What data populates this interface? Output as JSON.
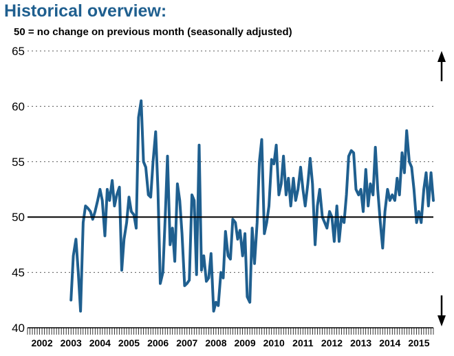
{
  "header": {
    "title": "Historical overview:",
    "subtitle": "50 = no change on previous month (seasonally adjusted)"
  },
  "colors": {
    "title": "#1f5f8f",
    "series": "#1f5f8f",
    "reference_line": "#000000",
    "grid": "#555555"
  },
  "chart_data": {
    "type": "line",
    "xlim": [
      2002,
      2016
    ],
    "ylim": [
      40,
      65
    ],
    "y_ticks": [
      40,
      45,
      50,
      55,
      60,
      65
    ],
    "x_tick_labels": [
      "2002",
      "2003",
      "2004",
      "2005",
      "2006",
      "2007",
      "2008",
      "2009",
      "2010",
      "2011",
      "2012",
      "2013",
      "2014",
      "2015"
    ],
    "reference_line": 50,
    "grid": "dotted horizontal",
    "markers": [
      "up-arrow top-right",
      "down-arrow bottom-right"
    ],
    "series": [
      {
        "points": [
          [
            2003.5,
            42.5
          ],
          [
            2003.58,
            46.5
          ],
          [
            2003.67,
            48.0
          ],
          [
            2003.75,
            45.0
          ],
          [
            2003.83,
            41.5
          ],
          [
            2003.92,
            49.5
          ],
          [
            2004.0,
            51.0
          ],
          [
            2004.08,
            50.8
          ],
          [
            2004.17,
            50.5
          ],
          [
            2004.25,
            49.8
          ],
          [
            2004.33,
            50.5
          ],
          [
            2004.42,
            51.5
          ],
          [
            2004.5,
            52.5
          ],
          [
            2004.58,
            51.5
          ],
          [
            2004.67,
            48.3
          ],
          [
            2004.75,
            52.5
          ],
          [
            2004.83,
            51.5
          ],
          [
            2004.92,
            53.3
          ],
          [
            2005.0,
            51.0
          ],
          [
            2005.08,
            52.0
          ],
          [
            2005.17,
            52.7
          ],
          [
            2005.25,
            45.2
          ],
          [
            2005.33,
            48.0
          ],
          [
            2005.42,
            49.5
          ],
          [
            2005.5,
            51.8
          ],
          [
            2005.58,
            50.5
          ],
          [
            2005.67,
            50.2
          ],
          [
            2005.75,
            49.0
          ],
          [
            2005.83,
            59.0
          ],
          [
            2005.92,
            60.5
          ],
          [
            2006.0,
            55.0
          ],
          [
            2006.08,
            54.5
          ],
          [
            2006.17,
            52.0
          ],
          [
            2006.25,
            51.8
          ],
          [
            2006.33,
            55.0
          ],
          [
            2006.42,
            57.7
          ],
          [
            2006.5,
            52.5
          ],
          [
            2006.58,
            44.0
          ],
          [
            2006.67,
            45.0
          ],
          [
            2006.75,
            50.0
          ],
          [
            2006.83,
            55.5
          ],
          [
            2006.92,
            47.5
          ],
          [
            2007.0,
            49.0
          ],
          [
            2007.08,
            46.0
          ],
          [
            2007.17,
            53.0
          ],
          [
            2007.25,
            51.5
          ],
          [
            2007.33,
            48.5
          ],
          [
            2007.42,
            43.8
          ],
          [
            2007.5,
            44.0
          ],
          [
            2007.58,
            44.3
          ],
          [
            2007.67,
            52.0
          ],
          [
            2007.75,
            51.5
          ],
          [
            2007.83,
            44.8
          ],
          [
            2007.92,
            56.5
          ],
          [
            2008.0,
            45.2
          ],
          [
            2008.08,
            46.5
          ],
          [
            2008.17,
            44.2
          ],
          [
            2008.25,
            44.5
          ],
          [
            2008.33,
            46.7
          ],
          [
            2008.42,
            41.5
          ],
          [
            2008.5,
            42.3
          ],
          [
            2008.58,
            42.0
          ],
          [
            2008.67,
            45.0
          ],
          [
            2008.75,
            44.5
          ],
          [
            2008.83,
            48.7
          ],
          [
            2008.92,
            46.5
          ],
          [
            2009.0,
            46.2
          ],
          [
            2009.08,
            49.8
          ],
          [
            2009.17,
            49.5
          ],
          [
            2009.25,
            48.0
          ],
          [
            2009.33,
            48.8
          ],
          [
            2009.42,
            46.5
          ],
          [
            2009.5,
            48.5
          ],
          [
            2009.58,
            42.8
          ],
          [
            2009.67,
            42.3
          ],
          [
            2009.75,
            49.0
          ],
          [
            2009.83,
            45.8
          ],
          [
            2009.92,
            49.5
          ],
          [
            2010.0,
            55.0
          ],
          [
            2010.08,
            57.0
          ],
          [
            2010.17,
            48.5
          ],
          [
            2010.25,
            49.5
          ],
          [
            2010.33,
            51.0
          ],
          [
            2010.42,
            55.2
          ],
          [
            2010.5,
            54.8
          ],
          [
            2010.58,
            56.5
          ],
          [
            2010.67,
            52.0
          ],
          [
            2010.75,
            53.0
          ],
          [
            2010.83,
            55.5
          ],
          [
            2010.92,
            52.0
          ],
          [
            2011.0,
            53.5
          ],
          [
            2011.08,
            51.0
          ],
          [
            2011.17,
            53.5
          ],
          [
            2011.25,
            51.5
          ],
          [
            2011.33,
            52.5
          ],
          [
            2011.42,
            54.5
          ],
          [
            2011.5,
            52.5
          ],
          [
            2011.58,
            51.0
          ],
          [
            2011.67,
            53.0
          ],
          [
            2011.75,
            55.3
          ],
          [
            2011.83,
            53.0
          ],
          [
            2011.92,
            47.5
          ],
          [
            2012.0,
            51.0
          ],
          [
            2012.08,
            52.5
          ],
          [
            2012.17,
            50.0
          ],
          [
            2012.25,
            49.5
          ],
          [
            2012.33,
            49.0
          ],
          [
            2012.42,
            50.5
          ],
          [
            2012.5,
            50.0
          ],
          [
            2012.58,
            47.8
          ],
          [
            2012.67,
            51.0
          ],
          [
            2012.75,
            47.8
          ],
          [
            2012.83,
            50.0
          ],
          [
            2012.92,
            49.5
          ],
          [
            2013.0,
            52.0
          ],
          [
            2013.08,
            55.5
          ],
          [
            2013.17,
            56.0
          ],
          [
            2013.25,
            55.8
          ],
          [
            2013.33,
            52.5
          ],
          [
            2013.42,
            52.0
          ],
          [
            2013.5,
            52.5
          ],
          [
            2013.58,
            50.5
          ],
          [
            2013.67,
            54.3
          ],
          [
            2013.75,
            51.0
          ],
          [
            2013.83,
            53.0
          ],
          [
            2013.92,
            52.0
          ],
          [
            2014.0,
            56.3
          ],
          [
            2014.08,
            52.5
          ],
          [
            2014.17,
            49.5
          ],
          [
            2014.25,
            47.2
          ],
          [
            2014.33,
            50.5
          ],
          [
            2014.42,
            52.5
          ],
          [
            2014.5,
            51.5
          ],
          [
            2014.58,
            52.0
          ],
          [
            2014.67,
            51.5
          ],
          [
            2014.75,
            53.5
          ],
          [
            2014.83,
            52.0
          ],
          [
            2014.92,
            55.8
          ],
          [
            2015.0,
            54.0
          ],
          [
            2015.08,
            57.8
          ],
          [
            2015.17,
            55.0
          ],
          [
            2015.25,
            54.5
          ],
          [
            2015.33,
            52.5
          ],
          [
            2015.42,
            49.5
          ],
          [
            2015.5,
            50.5
          ],
          [
            2015.58,
            49.5
          ],
          [
            2015.67,
            52.5
          ],
          [
            2015.75,
            54.0
          ],
          [
            2015.83,
            51.0
          ],
          [
            2015.92,
            54.0
          ],
          [
            2016.0,
            51.5
          ]
        ]
      }
    ]
  }
}
